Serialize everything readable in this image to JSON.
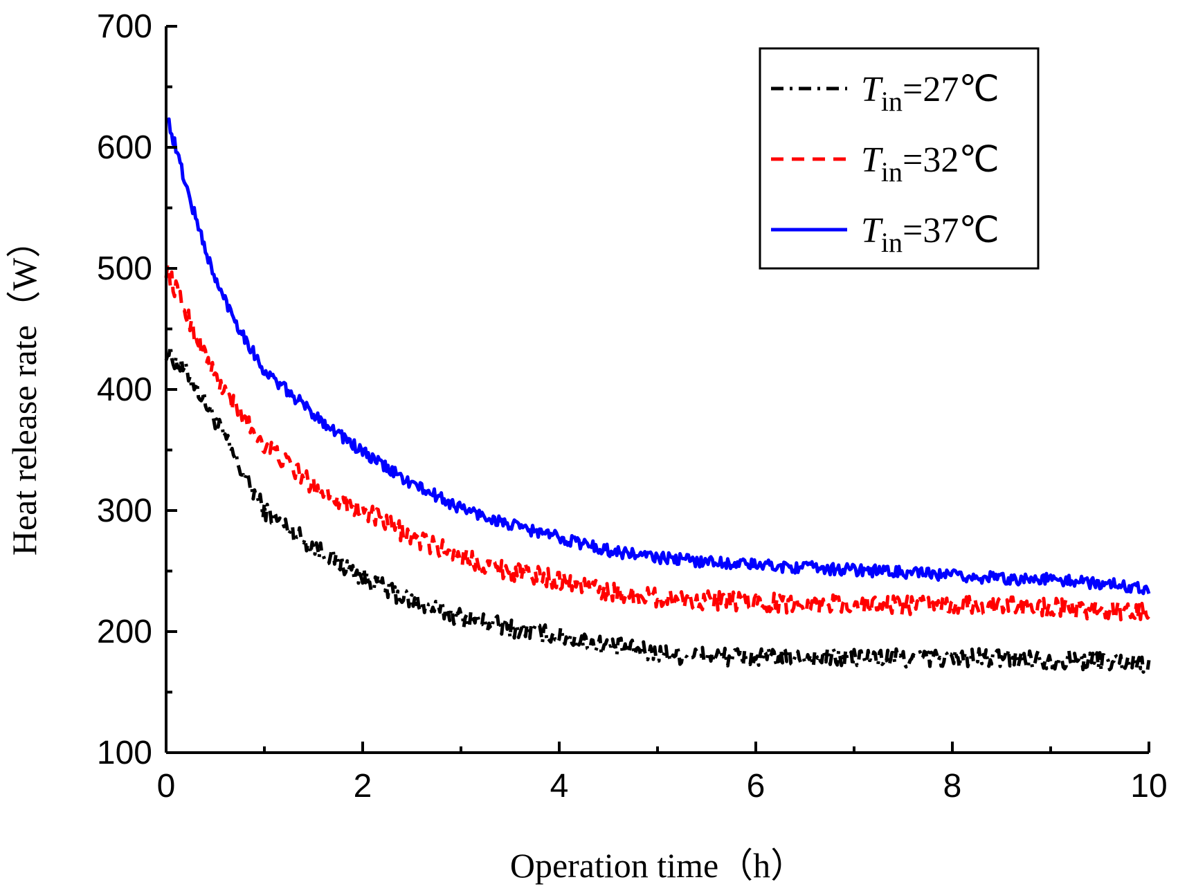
{
  "chart_data": {
    "type": "line",
    "xlabel": "Operation time（h）",
    "ylabel": "Heat release rate（W）",
    "xlim": [
      0,
      10
    ],
    "ylim": [
      100,
      700
    ],
    "x_ticks": [
      "0",
      "2",
      "4",
      "6",
      "8",
      "10"
    ],
    "y_ticks": [
      "100",
      "200",
      "300",
      "400",
      "500",
      "600",
      "700"
    ],
    "legend_position": "top-right",
    "x": [
      0,
      0.25,
      0.5,
      0.75,
      1,
      1.5,
      2,
      2.5,
      3,
      3.5,
      4,
      4.5,
      5,
      5.5,
      6,
      6.5,
      7,
      7.5,
      8,
      8.5,
      9,
      9.5,
      10
    ],
    "series": [
      {
        "name": "Tin=27℃",
        "label_var": "T",
        "label_sub": "in",
        "label_rest": "=27℃",
        "color": "#000000",
        "style": "dash-dot",
        "values": [
          432,
          410,
          375,
          335,
          300,
          270,
          245,
          225,
          212,
          203,
          196,
          188,
          182,
          180,
          178,
          179,
          178,
          178,
          178,
          178,
          177,
          176,
          174
        ]
      },
      {
        "name": "Tin=32℃",
        "label_var": "T",
        "label_sub": "in",
        "label_rest": "=32℃",
        "color": "#ff0000",
        "style": "dash",
        "values": [
          500,
          455,
          410,
          380,
          355,
          320,
          300,
          278,
          262,
          250,
          243,
          233,
          228,
          226,
          224,
          223,
          223,
          222,
          222,
          221,
          220,
          218,
          215
        ]
      },
      {
        "name": "Tin=37℃",
        "label_var": "T",
        "label_sub": "in",
        "label_rest": "=37℃",
        "color": "#0000ff",
        "style": "solid",
        "values": [
          628,
          555,
          490,
          450,
          415,
          380,
          348,
          322,
          302,
          288,
          278,
          267,
          261,
          258,
          255,
          253,
          251,
          249,
          246,
          244,
          243,
          240,
          236
        ]
      }
    ]
  }
}
